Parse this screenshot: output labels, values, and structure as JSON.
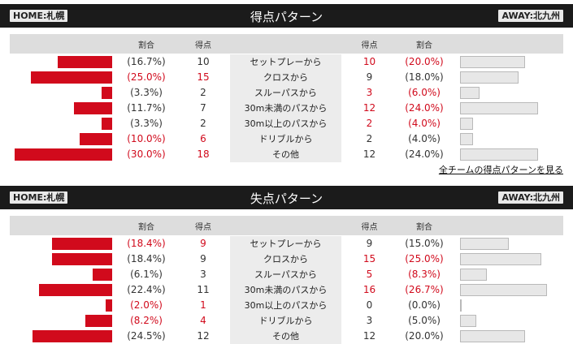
{
  "scored": {
    "title": "得点パターン",
    "home_label": "HOME:札幌",
    "away_label": "AWAY:北九州",
    "col_ratio": "割合",
    "col_goals": "得点",
    "rows": [
      {
        "category": "セットプレーから",
        "home_pct": "(16.7%)",
        "home_goals": "10",
        "away_goals": "10",
        "away_pct": "(20.0%)",
        "home_ratio": 16.7,
        "away_ratio": 20.0,
        "home_red": false,
        "away_red": true
      },
      {
        "category": "クロスから",
        "home_pct": "(25.0%)",
        "home_goals": "15",
        "away_goals": "9",
        "away_pct": "(18.0%)",
        "home_ratio": 25.0,
        "away_ratio": 18.0,
        "home_red": true,
        "away_red": false
      },
      {
        "category": "スルーパスから",
        "home_pct": "(3.3%)",
        "home_goals": "2",
        "away_goals": "3",
        "away_pct": "(6.0%)",
        "home_ratio": 3.3,
        "away_ratio": 6.0,
        "home_red": false,
        "away_red": true
      },
      {
        "category": "30m未満のパスから",
        "home_pct": "(11.7%)",
        "home_goals": "7",
        "away_goals": "12",
        "away_pct": "(24.0%)",
        "home_ratio": 11.7,
        "away_ratio": 24.0,
        "home_red": false,
        "away_red": true
      },
      {
        "category": "30m以上のパスから",
        "home_pct": "(3.3%)",
        "home_goals": "2",
        "away_goals": "2",
        "away_pct": "(4.0%)",
        "home_ratio": 3.3,
        "away_ratio": 4.0,
        "home_red": false,
        "away_red": true
      },
      {
        "category": "ドリブルから",
        "home_pct": "(10.0%)",
        "home_goals": "6",
        "away_goals": "2",
        "away_pct": "(4.0%)",
        "home_ratio": 10.0,
        "away_ratio": 4.0,
        "home_red": true,
        "away_red": false
      },
      {
        "category": "その他",
        "home_pct": "(30.0%)",
        "home_goals": "18",
        "away_goals": "12",
        "away_pct": "(24.0%)",
        "home_ratio": 30.0,
        "away_ratio": 24.0,
        "home_red": true,
        "away_red": false
      }
    ]
  },
  "all_teams_link": "全チームの得点パターンを見る",
  "conceded": {
    "title": "失点パターン",
    "home_label": "HOME:札幌",
    "away_label": "AWAY:北九州",
    "col_ratio": "割合",
    "col_goals": "得点",
    "rows": [
      {
        "category": "セットプレーから",
        "home_pct": "(18.4%)",
        "home_goals": "9",
        "away_goals": "9",
        "away_pct": "(15.0%)",
        "home_ratio": 18.4,
        "away_ratio": 15.0,
        "home_red": true,
        "away_red": false
      },
      {
        "category": "クロスから",
        "home_pct": "(18.4%)",
        "home_goals": "9",
        "away_goals": "15",
        "away_pct": "(25.0%)",
        "home_ratio": 18.4,
        "away_ratio": 25.0,
        "home_red": false,
        "away_red": true
      },
      {
        "category": "スルーパスから",
        "home_pct": "(6.1%)",
        "home_goals": "3",
        "away_goals": "5",
        "away_pct": "(8.3%)",
        "home_ratio": 6.1,
        "away_ratio": 8.3,
        "home_red": false,
        "away_red": true
      },
      {
        "category": "30m未満のパスから",
        "home_pct": "(22.4%)",
        "home_goals": "11",
        "away_goals": "16",
        "away_pct": "(26.7%)",
        "home_ratio": 22.4,
        "away_ratio": 26.7,
        "home_red": false,
        "away_red": true
      },
      {
        "category": "30m以上のパスから",
        "home_pct": "(2.0%)",
        "home_goals": "1",
        "away_goals": "0",
        "away_pct": "(0.0%)",
        "home_ratio": 2.0,
        "away_ratio": 0.0,
        "home_red": true,
        "away_red": false
      },
      {
        "category": "ドリブルから",
        "home_pct": "(8.2%)",
        "home_goals": "4",
        "away_goals": "3",
        "away_pct": "(5.0%)",
        "home_ratio": 8.2,
        "away_ratio": 5.0,
        "home_red": true,
        "away_red": false
      },
      {
        "category": "その他",
        "home_pct": "(24.5%)",
        "home_goals": "12",
        "away_goals": "12",
        "away_pct": "(20.0%)",
        "home_ratio": 24.5,
        "away_ratio": 20.0,
        "home_red": false,
        "away_red": false
      }
    ]
  },
  "colors": {
    "accent_red": "#d10a1c",
    "header_bg": "#1b1b1b",
    "bar_gray": "#e7e7e7"
  }
}
